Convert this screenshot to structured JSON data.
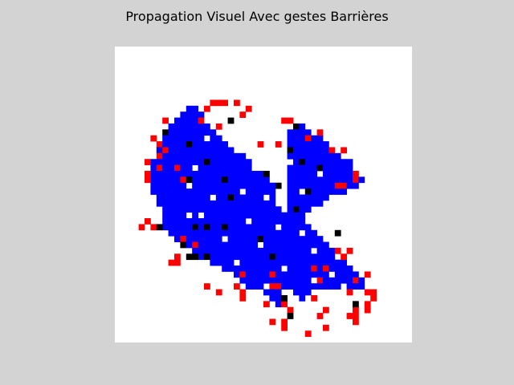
{
  "chart_data": {
    "type": "heatmap",
    "title": "Propagation Visuel Avec gestes Barrières",
    "xlabel": "",
    "ylabel": "",
    "axes": "off",
    "grid": false,
    "grid_size": [
      50,
      50
    ],
    "colors": {
      "0": "#ffffff",
      "1": "#0000ff",
      "2": "#ff0000",
      "3": "#000000"
    },
    "rows": {
      "9": [
        [
          20,
          0
        ],
        [
          21,
          0
        ],
        [
          22,
          0
        ],
        [
          23,
          0
        ],
        [
          24,
          0
        ],
        [
          25,
          0
        ],
        [
          26,
          0
        ],
        [
          27,
          0
        ],
        [
          28,
          0
        ],
        [
          29,
          0
        ],
        [
          30,
          0
        ],
        [
          31,
          0
        ],
        [
          32,
          0
        ],
        [
          33,
          0
        ]
      ],
      "10": [
        [
          20,
          0
        ],
        [
          21,
          0
        ],
        [
          22,
          0
        ],
        [
          23,
          0
        ],
        [
          24,
          0
        ],
        [
          25,
          0
        ],
        [
          26,
          0
        ],
        [
          27,
          0
        ],
        [
          28,
          0
        ],
        [
          29,
          0
        ],
        [
          30,
          0
        ],
        [
          31,
          0
        ],
        [
          32,
          0
        ],
        [
          33,
          0
        ]
      ],
      "11": [
        [
          20,
          0
        ],
        [
          21,
          0
        ],
        [
          22,
          0
        ],
        [
          23,
          0
        ],
        [
          24,
          0
        ],
        [
          25,
          0
        ],
        [
          26,
          0
        ],
        [
          27,
          0
        ],
        [
          28,
          0
        ],
        [
          29,
          0
        ],
        [
          30,
          0
        ],
        [
          31,
          0
        ],
        [
          32,
          0
        ],
        [
          33,
          0
        ]
      ],
      "12": [
        [
          20,
          0
        ],
        [
          21,
          0
        ],
        [
          22,
          0
        ],
        [
          23,
          0
        ],
        [
          24,
          0
        ],
        [
          25,
          0
        ],
        [
          26,
          0
        ],
        [
          27,
          0
        ],
        [
          28,
          0
        ],
        [
          29,
          0
        ],
        [
          30,
          0
        ],
        [
          31,
          0
        ],
        [
          32,
          0
        ],
        [
          33,
          0
        ]
      ]
    },
    "cells_blue": [
      [
        12,
        10,
        13,
        10
      ],
      [
        11,
        11,
        14,
        11
      ],
      [
        10,
        12,
        14,
        12
      ],
      [
        9,
        13,
        15,
        13
      ],
      [
        8,
        14,
        16,
        14
      ],
      [
        8,
        15,
        17,
        15
      ],
      [
        7,
        16,
        18,
        16
      ],
      [
        7,
        17,
        19,
        17
      ],
      [
        7,
        18,
        21,
        18
      ],
      [
        6,
        19,
        22,
        19
      ],
      [
        6,
        20,
        22,
        20
      ],
      [
        6,
        21,
        24,
        21
      ],
      [
        6,
        22,
        25,
        22
      ],
      [
        6,
        23,
        26,
        23
      ],
      [
        6,
        24,
        26,
        24
      ],
      [
        7,
        25,
        26,
        25
      ],
      [
        7,
        26,
        26,
        26
      ],
      [
        8,
        27,
        27,
        27
      ],
      [
        8,
        28,
        28,
        28
      ],
      [
        8,
        29,
        28,
        29
      ],
      [
        8,
        30,
        29,
        30
      ],
      [
        9,
        31,
        29,
        31
      ],
      [
        10,
        32,
        29,
        32
      ],
      [
        11,
        33,
        29,
        33
      ],
      [
        13,
        34,
        29,
        34
      ],
      [
        14,
        35,
        29,
        35
      ],
      [
        16,
        36,
        29,
        36
      ],
      [
        18,
        37,
        29,
        37
      ],
      [
        20,
        38,
        29,
        38
      ],
      [
        21,
        39,
        29,
        39
      ],
      [
        22,
        40,
        29,
        40
      ],
      [
        25,
        41,
        27,
        41
      ],
      [
        26,
        42,
        27,
        42
      ],
      [
        27,
        43,
        27,
        43
      ]
    ],
    "cells_blue_right": [
      [
        30,
        13,
        31,
        13
      ],
      [
        29,
        14,
        32,
        14
      ],
      [
        29,
        15,
        34,
        15
      ],
      [
        29,
        16,
        35,
        16
      ],
      [
        29,
        17,
        36,
        16
      ],
      [
        29,
        18,
        37,
        18
      ],
      [
        29,
        19,
        39,
        19
      ],
      [
        29,
        20,
        39,
        20
      ],
      [
        29,
        21,
        40,
        21
      ],
      [
        29,
        22,
        41,
        22
      ],
      [
        29,
        23,
        40,
        23
      ],
      [
        29,
        24,
        38,
        24
      ],
      [
        29,
        25,
        35,
        25
      ],
      [
        29,
        26,
        34,
        26
      ],
      [
        29,
        27,
        32,
        27
      ],
      [
        29,
        28,
        31,
        28
      ],
      [
        29,
        29,
        31,
        29
      ],
      [
        29,
        30,
        32,
        30
      ],
      [
        29,
        31,
        33,
        31
      ],
      [
        29,
        32,
        34,
        32
      ],
      [
        29,
        33,
        35,
        33
      ],
      [
        29,
        34,
        36,
        34
      ],
      [
        29,
        35,
        37,
        35
      ],
      [
        29,
        36,
        38,
        36
      ],
      [
        29,
        37,
        39,
        37
      ],
      [
        29,
        38,
        40,
        38
      ],
      [
        29,
        39,
        41,
        39
      ],
      [
        30,
        40,
        41,
        40
      ],
      [
        30,
        41,
        32,
        41
      ],
      [
        31,
        42,
        31,
        42
      ]
    ],
    "cells_white_holes": [
      [
        14,
        12
      ],
      [
        17,
        13
      ],
      [
        23,
        13
      ],
      [
        15,
        15
      ],
      [
        25,
        16
      ],
      [
        20,
        17
      ],
      [
        26,
        18
      ],
      [
        29,
        19
      ],
      [
        13,
        20
      ],
      [
        23,
        20
      ],
      [
        27,
        21
      ],
      [
        34,
        21
      ],
      [
        12,
        23
      ],
      [
        21,
        24
      ],
      [
        31,
        24
      ],
      [
        16,
        25
      ],
      [
        25,
        25
      ],
      [
        34,
        27
      ],
      [
        12,
        28
      ],
      [
        14,
        28
      ],
      [
        22,
        29
      ],
      [
        27,
        30
      ],
      [
        31,
        31
      ],
      [
        18,
        32
      ],
      [
        24,
        33
      ],
      [
        33,
        34
      ],
      [
        37,
        35
      ],
      [
        20,
        36
      ],
      [
        28,
        37
      ],
      [
        36,
        38
      ],
      [
        33,
        39
      ],
      [
        25,
        40
      ],
      [
        38,
        40
      ]
    ],
    "cells_red": [
      [
        16,
        9
      ],
      [
        17,
        9
      ],
      [
        18,
        9
      ],
      [
        20,
        9
      ],
      [
        15,
        10
      ],
      [
        22,
        10
      ],
      [
        21,
        11
      ],
      [
        14,
        12
      ],
      [
        8,
        12
      ],
      [
        28,
        12
      ],
      [
        29,
        12
      ],
      [
        17,
        13
      ],
      [
        34,
        14
      ],
      [
        6,
        15
      ],
      [
        32,
        15
      ],
      [
        7,
        16
      ],
      [
        24,
        16
      ],
      [
        27,
        16
      ],
      [
        8,
        17
      ],
      [
        36,
        17
      ],
      [
        38,
        17
      ],
      [
        7,
        18
      ],
      [
        5,
        19
      ],
      [
        7,
        20
      ],
      [
        10,
        20
      ],
      [
        5,
        21
      ],
      [
        40,
        21
      ],
      [
        5,
        22
      ],
      [
        11,
        22
      ],
      [
        40,
        22
      ],
      [
        37,
        23
      ],
      [
        38,
        23
      ],
      [
        5,
        29
      ],
      [
        4,
        30
      ],
      [
        6,
        30
      ],
      [
        11,
        32
      ],
      [
        13,
        33
      ],
      [
        37,
        34
      ],
      [
        39,
        34
      ],
      [
        10,
        35
      ],
      [
        38,
        35
      ],
      [
        9,
        36
      ],
      [
        10,
        36
      ],
      [
        33,
        37
      ],
      [
        35,
        37
      ],
      [
        21,
        38
      ],
      [
        26,
        38
      ],
      [
        42,
        38
      ],
      [
        34,
        39
      ],
      [
        40,
        39
      ],
      [
        15,
        40
      ],
      [
        20,
        40
      ],
      [
        26,
        40
      ],
      [
        27,
        40
      ],
      [
        17,
        41
      ],
      [
        21,
        41
      ],
      [
        39,
        41
      ],
      [
        42,
        41
      ],
      [
        43,
        41
      ],
      [
        21,
        42
      ],
      [
        33,
        42
      ],
      [
        43,
        42
      ],
      [
        25,
        43
      ],
      [
        28,
        43
      ],
      [
        42,
        43
      ],
      [
        29,
        44
      ],
      [
        35,
        44
      ],
      [
        40,
        44
      ],
      [
        42,
        44
      ],
      [
        34,
        45
      ],
      [
        39,
        45
      ],
      [
        40,
        45
      ],
      [
        26,
        46
      ],
      [
        28,
        46
      ],
      [
        40,
        46
      ],
      [
        28,
        47
      ],
      [
        35,
        47
      ],
      [
        32,
        48
      ]
    ],
    "cells_black": [
      [
        19,
        12
      ],
      [
        30,
        13
      ],
      [
        8,
        14
      ],
      [
        12,
        16
      ],
      [
        29,
        17
      ],
      [
        15,
        19
      ],
      [
        31,
        19
      ],
      [
        34,
        20
      ],
      [
        25,
        21
      ],
      [
        12,
        22
      ],
      [
        18,
        22
      ],
      [
        27,
        23
      ],
      [
        32,
        24
      ],
      [
        19,
        25
      ],
      [
        30,
        27
      ],
      [
        7,
        30
      ],
      [
        13,
        30
      ],
      [
        15,
        30
      ],
      [
        18,
        30
      ],
      [
        37,
        31
      ],
      [
        24,
        32
      ],
      [
        11,
        33
      ],
      [
        12,
        35
      ],
      [
        13,
        35
      ],
      [
        15,
        35
      ],
      [
        26,
        35
      ],
      [
        28,
        42
      ],
      [
        40,
        43
      ],
      [
        29,
        45
      ]
    ]
  }
}
